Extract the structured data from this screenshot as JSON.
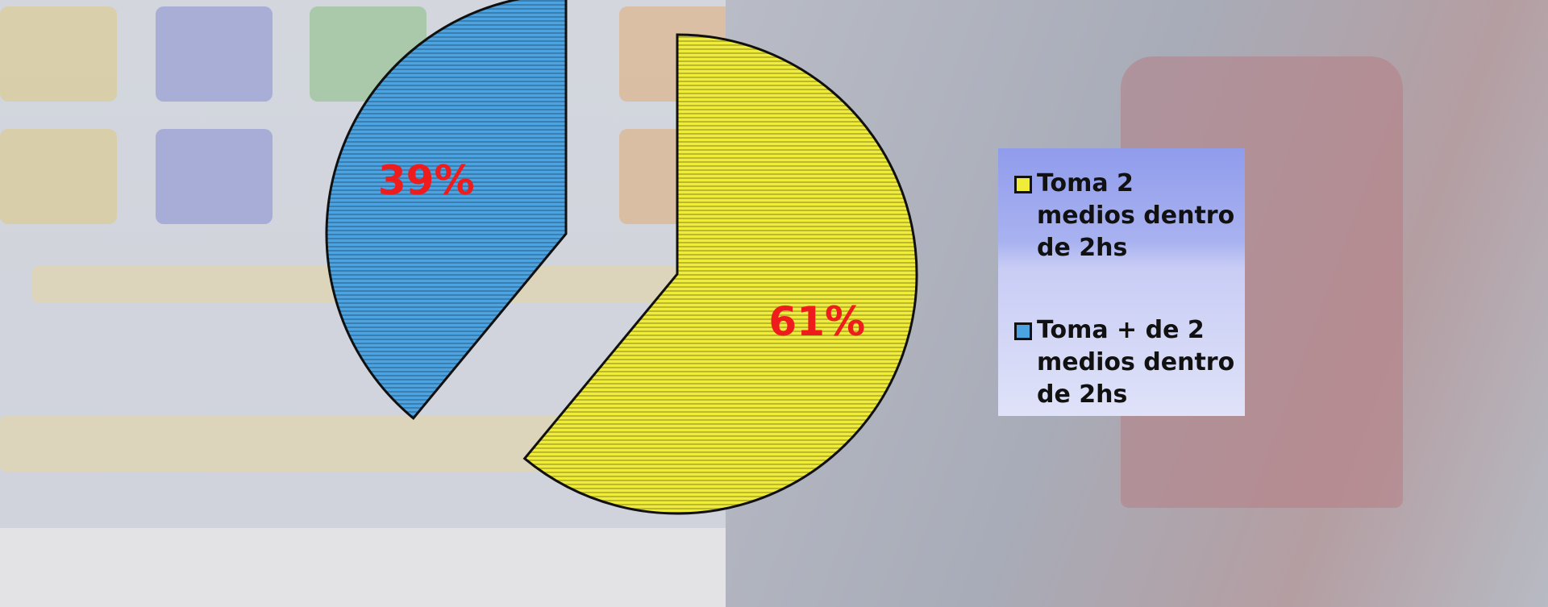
{
  "chart_data": {
    "type": "pie",
    "categories": [
      "Toma 2 medios dentro de 2hs",
      "Toma + de 2 medios dentro de 2hs"
    ],
    "values": [
      61,
      39
    ],
    "value_labels": [
      "61%",
      "39%"
    ],
    "colors": [
      "#f0ec3a",
      "#4ba3e2"
    ]
  }
}
